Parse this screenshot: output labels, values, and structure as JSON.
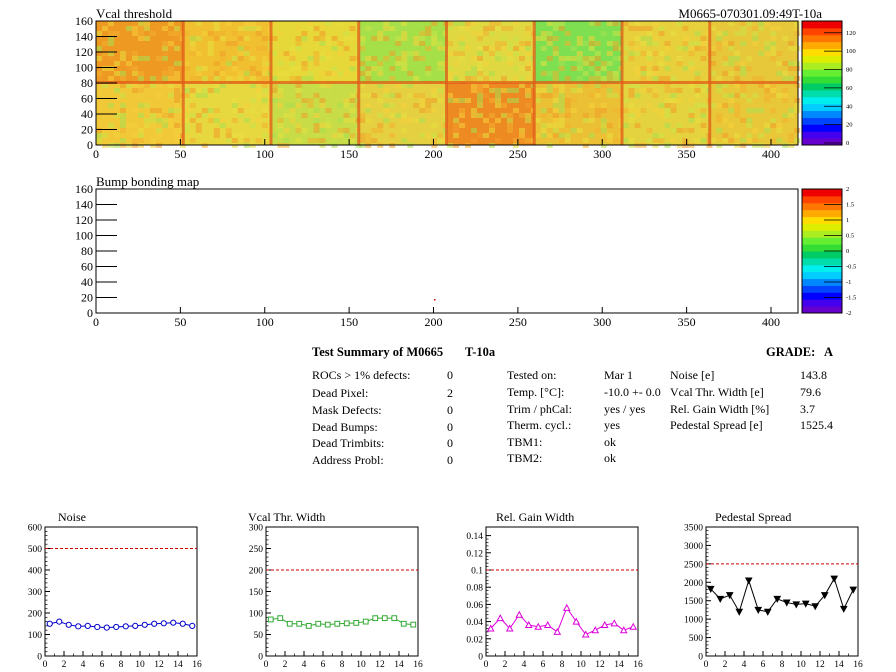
{
  "maps": {
    "threshold_title": "Vcal threshold",
    "run_id": "M0665-070301.09:49T-10a",
    "bump_title": "Bump bonding map",
    "y_ticks": [
      "0",
      "20",
      "40",
      "60",
      "80",
      "100",
      "120",
      "140",
      "160"
    ],
    "x_ticks": [
      "0",
      "50",
      "100",
      "150",
      "200",
      "250",
      "300",
      "350",
      "400"
    ],
    "threshold_palette_ticks": [
      "0",
      "20",
      "40",
      "60",
      "80",
      "100",
      "120"
    ],
    "bump_palette_ticks": [
      "-2",
      "-1.5",
      "-1",
      "-0.5",
      "0",
      "0.5",
      "1",
      "1.5",
      "2"
    ]
  },
  "summary": {
    "title": "Test Summary of M0665",
    "temp_label": "T-10a",
    "grade_label": "GRADE:",
    "grade": "A",
    "col1": [
      {
        "label": "ROCs > 1% defects:",
        "value": "0"
      },
      {
        "label": "Dead Pixel:",
        "value": "2"
      },
      {
        "label": "Mask Defects:",
        "value": "0"
      },
      {
        "label": "Dead Bumps:",
        "value": "0"
      },
      {
        "label": "Dead Trimbits:",
        "value": "0"
      },
      {
        "label": "Address Probl:",
        "value": "0"
      }
    ],
    "col2": [
      {
        "label": "Tested on:",
        "value": "Mar 1"
      },
      {
        "label": "Temp. [°C]:",
        "value": "-10.0 +- 0.0"
      },
      {
        "label": "Trim / phCal:",
        "value": "yes / yes"
      },
      {
        "label": "Therm. cycl.:",
        "value": "yes"
      },
      {
        "label": "TBM1:",
        "value": "ok"
      },
      {
        "label": "TBM2:",
        "value": "ok"
      }
    ],
    "col3": [
      {
        "label": "Noise [e]",
        "value": "143.8"
      },
      {
        "label": "Vcal Thr. Width [e]",
        "value": "79.6"
      },
      {
        "label": "Rel. Gain Width [%]",
        "value": "3.7"
      },
      {
        "label": "Pedestal Spread [e]",
        "value": "1525.4"
      }
    ]
  },
  "chart_data": [
    {
      "type": "line",
      "title": "Noise",
      "color": "#0000cc",
      "marker": "circle",
      "xlim": [
        0,
        16
      ],
      "ylim": [
        0,
        600
      ],
      "y_ticks": [
        0,
        100,
        200,
        300,
        400,
        500,
        600
      ],
      "threshold": 500,
      "x": [
        0.5,
        1.5,
        2.5,
        3.5,
        4.5,
        5.5,
        6.5,
        7.5,
        8.5,
        9.5,
        10.5,
        11.5,
        12.5,
        13.5,
        14.5,
        15.5
      ],
      "values": [
        150,
        160,
        145,
        138,
        140,
        135,
        132,
        135,
        138,
        140,
        145,
        150,
        152,
        155,
        150,
        140
      ]
    },
    {
      "type": "line",
      "title": "Vcal Thr. Width",
      "color": "#33aa33",
      "marker": "square",
      "xlim": [
        0,
        16
      ],
      "ylim": [
        0,
        300
      ],
      "y_ticks": [
        0,
        50,
        100,
        150,
        200,
        250,
        300
      ],
      "threshold": 200,
      "x": [
        0.5,
        1.5,
        2.5,
        3.5,
        4.5,
        5.5,
        6.5,
        7.5,
        8.5,
        9.5,
        10.5,
        11.5,
        12.5,
        13.5,
        14.5,
        15.5
      ],
      "values": [
        85,
        88,
        75,
        75,
        70,
        75,
        73,
        75,
        76,
        77,
        80,
        88,
        88,
        88,
        75,
        73
      ]
    },
    {
      "type": "line",
      "title": "Rel. Gain Width",
      "color": "#dd00dd",
      "marker": "triangle",
      "xlim": [
        0,
        16
      ],
      "ylim": [
        0,
        0.15
      ],
      "y_ticks": [
        0,
        0.02,
        0.04,
        0.06,
        0.08,
        0.1,
        0.12,
        0.14
      ],
      "threshold": 0.1,
      "x": [
        0.5,
        1.5,
        2.5,
        3.5,
        4.5,
        5.5,
        6.5,
        7.5,
        8.5,
        9.5,
        10.5,
        11.5,
        12.5,
        13.5,
        14.5,
        15.5
      ],
      "values": [
        0.032,
        0.044,
        0.032,
        0.048,
        0.036,
        0.034,
        0.036,
        0.028,
        0.056,
        0.04,
        0.025,
        0.03,
        0.036,
        0.038,
        0.03,
        0.034
      ]
    },
    {
      "type": "line",
      "title": "Pedestal Spread",
      "color": "#000000",
      "marker": "triangle-down",
      "xlim": [
        0,
        16
      ],
      "ylim": [
        0,
        3500
      ],
      "y_ticks": [
        0,
        500,
        1000,
        1500,
        2000,
        2500,
        3000,
        3500
      ],
      "threshold": 2500,
      "x": [
        0.5,
        1.5,
        2.5,
        3.5,
        4.5,
        5.5,
        6.5,
        7.5,
        8.5,
        9.5,
        10.5,
        11.5,
        12.5,
        13.5,
        14.5,
        15.5
      ],
      "values": [
        1820,
        1550,
        1650,
        1200,
        2050,
        1250,
        1200,
        1550,
        1450,
        1400,
        1420,
        1350,
        1650,
        2100,
        1280,
        1800
      ]
    }
  ]
}
